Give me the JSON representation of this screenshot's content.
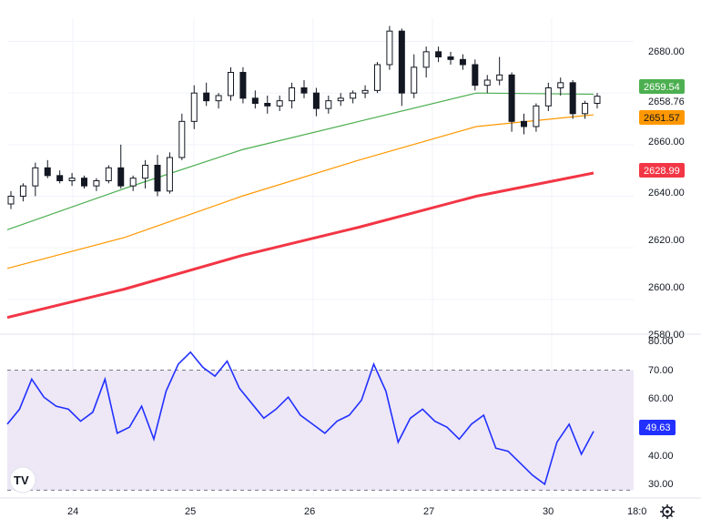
{
  "colors": {
    "candle": "#131722",
    "ma_fast": "#4caf50",
    "ma_mid": "#ff9800",
    "ma_slow": "#f23645",
    "rsi_line": "#2130ff",
    "rsi_band_fill": "#ede7f6",
    "tag_fast": "#4caf50",
    "tag_mid": "#ff9800",
    "tag_slow": "#f23645",
    "tag_rsi": "#2130ff",
    "grid": "#f0f3fa"
  },
  "price_axis": {
    "ticks": [
      "2680.00",
      "2660.00",
      "2640.00",
      "2620.00",
      "2600.00",
      "2580.00"
    ]
  },
  "rsi_axis": {
    "ticks": [
      "80.00",
      "70.00",
      "60.00",
      "50.00",
      "40.00",
      "30.00"
    ]
  },
  "time_axis": {
    "labels": [
      "24",
      "25",
      "26",
      "27",
      "30",
      "18:0"
    ]
  },
  "price_tags": {
    "ma_fast": "2659.54",
    "last_price": "2658.76",
    "ma_mid": "2651.57",
    "ma_slow": "2628.99"
  },
  "rsi_tag": "49.63",
  "logo_text": "TV",
  "settings_icon": "gear-icon",
  "chart_data": {
    "type": "line",
    "title": "",
    "price_panel": {
      "ylim": [
        2569,
        2689
      ],
      "series": [
        {
          "role": "ma_fast",
          "x": [
            0,
            20,
            40,
            60,
            80,
            100
          ],
          "values": [
            2607,
            2623,
            2638,
            2649,
            2660,
            2659.54
          ]
        },
        {
          "role": "ma_mid",
          "x": [
            0,
            20,
            40,
            60,
            80,
            100
          ],
          "values": [
            2592,
            2604,
            2620,
            2634,
            2647,
            2651.57
          ]
        },
        {
          "role": "ma_slow",
          "x": [
            0,
            20,
            40,
            60,
            80,
            100
          ],
          "values": [
            2573,
            2584,
            2597,
            2608,
            2620,
            2628.99
          ]
        }
      ],
      "candles": [
        {
          "o": 2617,
          "h": 2622,
          "l": 2615,
          "c": 2620
        },
        {
          "o": 2620,
          "h": 2625,
          "l": 2618,
          "c": 2624
        },
        {
          "o": 2624,
          "h": 2633,
          "l": 2620,
          "c": 2631
        },
        {
          "o": 2631,
          "h": 2634,
          "l": 2627,
          "c": 2628
        },
        {
          "o": 2628,
          "h": 2630,
          "l": 2625,
          "c": 2626
        },
        {
          "o": 2626,
          "h": 2629,
          "l": 2624,
          "c": 2627
        },
        {
          "o": 2627,
          "h": 2628,
          "l": 2623,
          "c": 2624
        },
        {
          "o": 2624,
          "h": 2627,
          "l": 2622,
          "c": 2626
        },
        {
          "o": 2626,
          "h": 2632,
          "l": 2625,
          "c": 2631
        },
        {
          "o": 2631,
          "h": 2640,
          "l": 2623,
          "c": 2624
        },
        {
          "o": 2624,
          "h": 2628,
          "l": 2622,
          "c": 2627
        },
        {
          "o": 2627,
          "h": 2634,
          "l": 2623,
          "c": 2632
        },
        {
          "o": 2632,
          "h": 2636,
          "l": 2620,
          "c": 2622
        },
        {
          "o": 2622,
          "h": 2637,
          "l": 2621,
          "c": 2635
        },
        {
          "o": 2635,
          "h": 2652,
          "l": 2634,
          "c": 2649
        },
        {
          "o": 2649,
          "h": 2663,
          "l": 2646,
          "c": 2660
        },
        {
          "o": 2660,
          "h": 2664,
          "l": 2655,
          "c": 2657
        },
        {
          "o": 2657,
          "h": 2660,
          "l": 2654,
          "c": 2659
        },
        {
          "o": 2659,
          "h": 2670,
          "l": 2657,
          "c": 2668
        },
        {
          "o": 2668,
          "h": 2670,
          "l": 2656,
          "c": 2658
        },
        {
          "o": 2658,
          "h": 2661,
          "l": 2654,
          "c": 2656
        },
        {
          "o": 2656,
          "h": 2659,
          "l": 2652,
          "c": 2655
        },
        {
          "o": 2655,
          "h": 2659,
          "l": 2653,
          "c": 2657
        },
        {
          "o": 2657,
          "h": 2664,
          "l": 2654,
          "c": 2662
        },
        {
          "o": 2662,
          "h": 2665,
          "l": 2658,
          "c": 2660
        },
        {
          "o": 2660,
          "h": 2662,
          "l": 2651,
          "c": 2654
        },
        {
          "o": 2654,
          "h": 2659,
          "l": 2652,
          "c": 2657
        },
        {
          "o": 2657,
          "h": 2660,
          "l": 2655,
          "c": 2658
        },
        {
          "o": 2658,
          "h": 2661,
          "l": 2656,
          "c": 2660
        },
        {
          "o": 2660,
          "h": 2663,
          "l": 2658,
          "c": 2661
        },
        {
          "o": 2661,
          "h": 2672,
          "l": 2660,
          "c": 2671
        },
        {
          "o": 2671,
          "h": 2686,
          "l": 2669,
          "c": 2684
        },
        {
          "o": 2684,
          "h": 2685,
          "l": 2655,
          "c": 2660
        },
        {
          "o": 2660,
          "h": 2675,
          "l": 2658,
          "c": 2670
        },
        {
          "o": 2670,
          "h": 2678,
          "l": 2666,
          "c": 2676
        },
        {
          "o": 2676,
          "h": 2678,
          "l": 2672,
          "c": 2674
        },
        {
          "o": 2674,
          "h": 2676,
          "l": 2671,
          "c": 2673
        },
        {
          "o": 2673,
          "h": 2675,
          "l": 2669,
          "c": 2671
        },
        {
          "o": 2671,
          "h": 2673,
          "l": 2661,
          "c": 2663
        },
        {
          "o": 2663,
          "h": 2667,
          "l": 2660,
          "c": 2665
        },
        {
          "o": 2665,
          "h": 2674,
          "l": 2663,
          "c": 2667
        },
        {
          "o": 2667,
          "h": 2668,
          "l": 2645,
          "c": 2649
        },
        {
          "o": 2649,
          "h": 2652,
          "l": 2644,
          "c": 2647
        },
        {
          "o": 2647,
          "h": 2656,
          "l": 2645,
          "c": 2655
        },
        {
          "o": 2655,
          "h": 2664,
          "l": 2653,
          "c": 2662
        },
        {
          "o": 2662,
          "h": 2666,
          "l": 2659,
          "c": 2664
        },
        {
          "o": 2664,
          "h": 2665,
          "l": 2650,
          "c": 2652
        },
        {
          "o": 2652,
          "h": 2657,
          "l": 2650,
          "c": 2656
        },
        {
          "o": 2656,
          "h": 2660,
          "l": 2654,
          "c": 2658.76
        }
      ]
    },
    "rsi_panel": {
      "ylim": [
        28,
        82
      ],
      "band": [
        30,
        70
      ],
      "values": [
        52,
        57,
        67,
        61,
        58,
        57,
        53,
        56,
        67,
        49,
        51,
        58,
        47,
        63,
        72,
        76,
        71,
        68,
        73,
        64,
        59,
        54,
        57,
        61,
        55,
        52,
        49,
        53,
        55,
        60,
        72,
        63,
        46,
        54,
        57,
        53,
        51,
        47,
        52,
        55,
        44,
        43,
        39,
        35,
        32,
        46,
        52,
        42,
        49.63
      ]
    }
  }
}
